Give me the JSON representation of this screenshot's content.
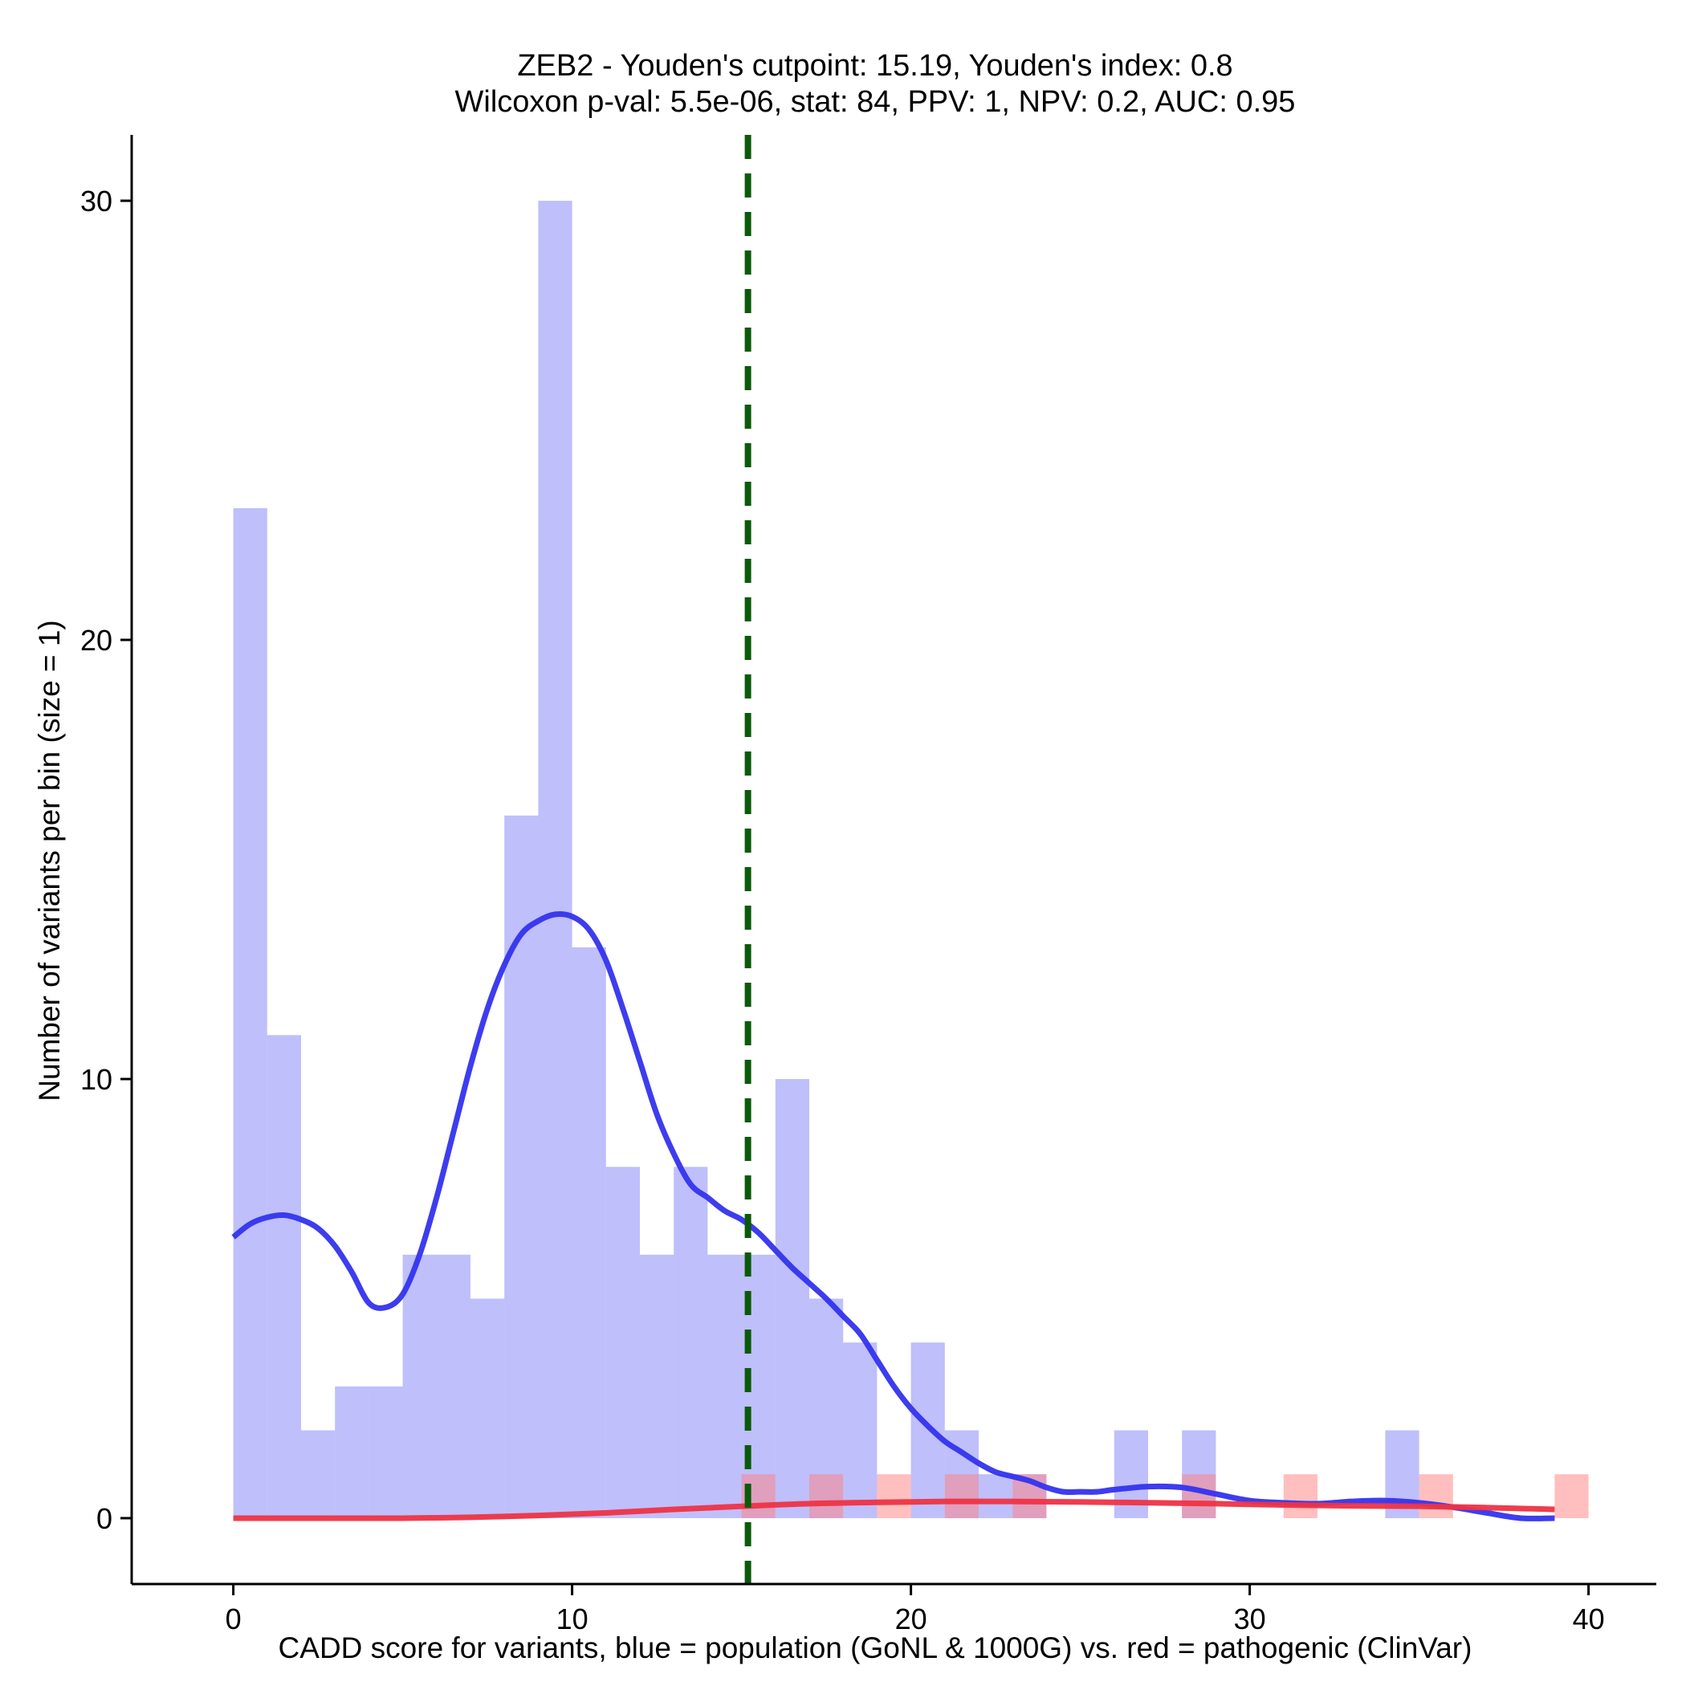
{
  "chart_data": {
    "type": "bar",
    "title_line1": "ZEB2 - Youden's cutpoint: 15.19, Youden's index: 0.8",
    "title_line2": "Wilcoxon p-val: 5.5e-06, stat: 84, PPV: 1, NPV: 0.2, AUC: 0.95",
    "xlabel": "CADD score for variants, blue = population (GoNL & 1000G) vs. red = pathogenic (ClinVar)",
    "ylabel": "Number of variants per bin (size = 1)",
    "xlim": [
      -3,
      42
    ],
    "ylim": [
      -1.5,
      31.5
    ],
    "xticks": [
      0,
      10,
      20,
      30,
      40
    ],
    "yticks": [
      0,
      10,
      20,
      30
    ],
    "bin_width": 1,
    "cutpoint": 15.19,
    "series": [
      {
        "name": "population (GoNL & 1000G)",
        "color": "#8080f8",
        "opacity": 0.5,
        "bin_starts": [
          0,
          1,
          2,
          3,
          4,
          5,
          6,
          7,
          8,
          9,
          10,
          11,
          12,
          13,
          14,
          15,
          16,
          17,
          18,
          20,
          21,
          22,
          23,
          26,
          28,
          34
        ],
        "counts": [
          23,
          11,
          2,
          3,
          3,
          6,
          6,
          5,
          16,
          30,
          13,
          8,
          6,
          8,
          6,
          6,
          10,
          5,
          4,
          4,
          2,
          1,
          1,
          2,
          2,
          2
        ]
      },
      {
        "name": "pathogenic (ClinVar)",
        "color": "#ff8080",
        "opacity": 0.5,
        "bin_starts": [
          15,
          17,
          19,
          21,
          23,
          28,
          31,
          35,
          39
        ],
        "counts": [
          1,
          1,
          1,
          1,
          1,
          1,
          1,
          1,
          1
        ]
      }
    ],
    "density_curves": [
      {
        "name": "population density",
        "color": "#3333ee",
        "x": [
          0,
          0.5,
          1,
          1.5,
          2,
          2.5,
          3,
          3.5,
          4,
          4.5,
          5,
          5.5,
          6,
          6.5,
          7,
          7.5,
          8,
          8.5,
          9,
          9.5,
          10,
          10.5,
          11,
          11.5,
          12,
          12.5,
          13,
          13.5,
          14,
          14.5,
          15,
          15.5,
          16,
          16.5,
          17,
          17.5,
          18,
          18.5,
          19,
          19.5,
          20,
          20.5,
          21,
          21.5,
          22,
          22.5,
          23,
          23.5,
          24,
          24.5,
          25,
          25.5,
          26,
          27,
          28,
          29,
          30,
          31,
          32,
          33,
          34,
          35,
          36,
          37,
          38,
          39
        ],
        "y": [
          6.4,
          6.7,
          6.85,
          6.9,
          6.8,
          6.6,
          6.2,
          5.6,
          4.9,
          4.8,
          5.1,
          6.0,
          7.3,
          8.8,
          10.3,
          11.6,
          12.6,
          13.3,
          13.6,
          13.75,
          13.7,
          13.4,
          12.7,
          11.6,
          10.4,
          9.2,
          8.3,
          7.6,
          7.3,
          7.0,
          6.8,
          6.5,
          6.1,
          5.7,
          5.35,
          5.0,
          4.6,
          4.2,
          3.6,
          3.0,
          2.5,
          2.1,
          1.75,
          1.5,
          1.25,
          1.05,
          0.95,
          0.85,
          0.7,
          0.6,
          0.6,
          0.6,
          0.65,
          0.72,
          0.7,
          0.55,
          0.4,
          0.35,
          0.33,
          0.38,
          0.4,
          0.35,
          0.25,
          0.12,
          0.0,
          0.0
        ]
      },
      {
        "name": "pathogenic density",
        "color": "#ee3344",
        "x": [
          0,
          2,
          4,
          5,
          7,
          9,
          11,
          13,
          15,
          17,
          19,
          21,
          23,
          25,
          27,
          29,
          31,
          33,
          35,
          37,
          39
        ],
        "y": [
          0.0,
          0.0,
          0.0,
          0.0,
          0.02,
          0.06,
          0.12,
          0.2,
          0.27,
          0.33,
          0.36,
          0.38,
          0.38,
          0.37,
          0.35,
          0.33,
          0.3,
          0.28,
          0.27,
          0.24,
          0.2
        ]
      }
    ]
  }
}
